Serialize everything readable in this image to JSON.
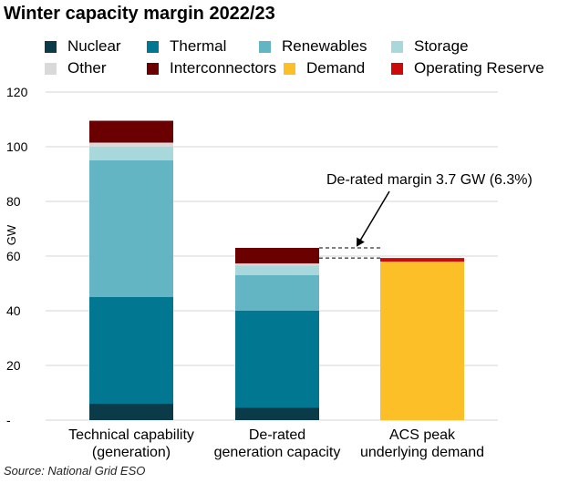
{
  "chart_data": {
    "type": "bar",
    "stacked": true,
    "title": "Winter capacity margin 2022/23",
    "ylabel": "GW",
    "ylim": [
      0,
      120
    ],
    "yticks": [
      "-",
      "20",
      "40",
      "60",
      "80",
      "100",
      "120"
    ],
    "grid": true,
    "legend_position": "top",
    "categories": [
      [
        "Technical capability",
        "(generation)"
      ],
      [
        "De-rated",
        "generation capacity"
      ],
      [
        "ACS peak",
        "underlying demand"
      ]
    ],
    "series": [
      {
        "name": "Nuclear",
        "color": "#0b3a48",
        "values": [
          6,
          4.5,
          0
        ]
      },
      {
        "name": "Thermal",
        "color": "#017791",
        "values": [
          39,
          35.5,
          0
        ]
      },
      {
        "name": "Renewables",
        "color": "#63b5c3",
        "values": [
          50,
          13,
          0
        ]
      },
      {
        "name": "Storage",
        "color": "#a8d8dc",
        "values": [
          5,
          3.5,
          0
        ]
      },
      {
        "name": "Other",
        "color": "#d9d9d9",
        "values": [
          1.5,
          0.8,
          0
        ]
      },
      {
        "name": "Interconnectors",
        "color": "#6b0000",
        "values": [
          8,
          5.7,
          0
        ]
      },
      {
        "name": "Demand",
        "color": "#fdbf27",
        "values": [
          0,
          0,
          58
        ]
      },
      {
        "name": "Operating Reserve",
        "color": "#cc0a0a",
        "values": [
          0,
          0,
          1.3
        ]
      }
    ],
    "annotations": [
      {
        "text": "De-rated margin 3.7 GW (6.3%)",
        "from": 63,
        "to": 59.3
      }
    ]
  },
  "source": "Source: National Grid ESO"
}
